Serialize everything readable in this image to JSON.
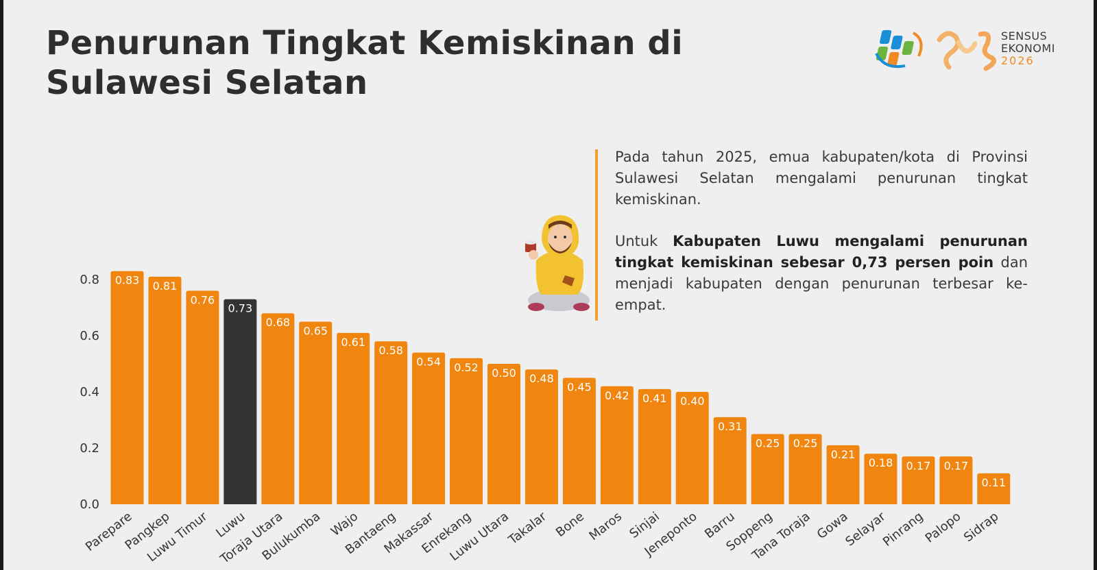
{
  "title": "Penurunan  Tingkat Kemiskinan di\nSulawesi Selatan",
  "logo": {
    "line1": "SENSUS",
    "line2": "EKONOMI",
    "year": "2026"
  },
  "description": {
    "paragraph1": "Pada tahun 2025, emua kabupaten/kota di Provinsi Sulawesi Selatan mengalami penurunan tingkat kemiskinan.",
    "paragraph2_prefix": "Untuk ",
    "paragraph2_bold": "Kabupaten Luwu mengalami penurunan tingkat kemiskinan sebesar 0,73 persen poin",
    "paragraph2_suffix": " dan menjadi kabupaten dengan penurunan terbesar ke-empat."
  },
  "colors": {
    "bar": "#f0860f",
    "highlight": "#333333",
    "accent": "#f0a030"
  },
  "chart_data": {
    "type": "bar",
    "categories": [
      "Parepare",
      "Pangkep",
      "Luwu Timur",
      "Luwu",
      "Toraja Utara",
      "Bulukumba",
      "Wajo",
      "Bantaeng",
      "Makassar",
      "Enrekang",
      "Luwu Utara",
      "Takalar",
      "Bone",
      "Maros",
      "Sinjai",
      "Jeneponto",
      "Barru",
      "Soppeng",
      "Tana Toraja",
      "Gowa",
      "Selayar",
      "Pinrang",
      "Palopo",
      "Sidrap"
    ],
    "values": [
      0.83,
      0.81,
      0.76,
      0.73,
      0.68,
      0.65,
      0.61,
      0.58,
      0.54,
      0.52,
      0.5,
      0.48,
      0.45,
      0.42,
      0.41,
      0.4,
      0.31,
      0.25,
      0.25,
      0.21,
      0.18,
      0.17,
      0.17,
      0.11
    ],
    "value_labels": [
      "0.83",
      "0.81",
      "0.76",
      "0.73",
      "0.68",
      "0.65",
      "0.61",
      "0.58",
      "0.54",
      "0.52",
      "0.50",
      "0.48",
      "0.45",
      "0.42",
      "0.41",
      "0.40",
      "0.31",
      "0.25",
      "0.25",
      "0.21",
      "0.18",
      "0.17",
      "0.17",
      "0.11"
    ],
    "highlight_category": "Luwu",
    "ylim": [
      0,
      0.8
    ],
    "yticks": [
      "0.0",
      "0.2",
      "0.4",
      "0.6",
      "0.8"
    ],
    "grid": false,
    "legend": "none"
  }
}
